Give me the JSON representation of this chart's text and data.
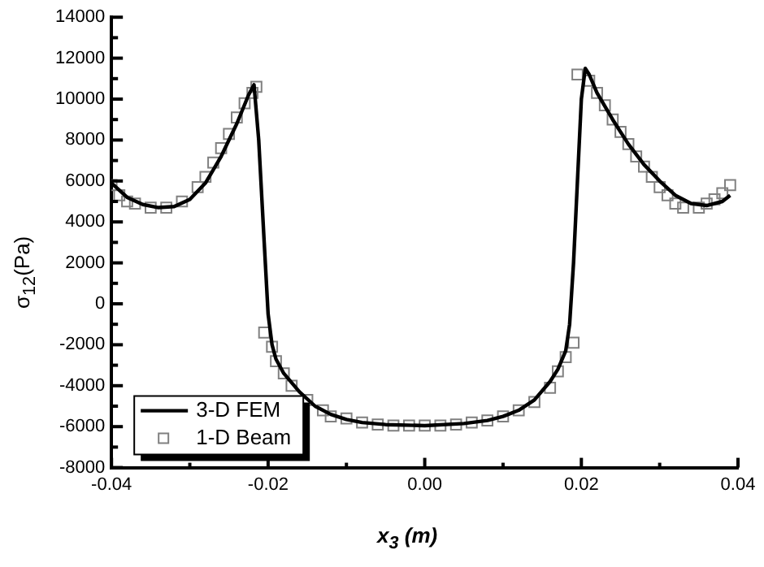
{
  "chart_data": {
    "type": "line",
    "xlabel": "x$_{3}$ (m)",
    "ylabel": "σ$_{12}$(Pa)",
    "xlim": [
      -0.04,
      0.04
    ],
    "xticks": [
      -0.04,
      -0.02,
      {
        "value": 0,
        "label": "0.00"
      },
      0.02,
      0.04
    ],
    "ylim": [
      -8000,
      14000
    ],
    "yticks": [
      -8000,
      -6000,
      -4000,
      -2000,
      0,
      2000,
      4000,
      6000,
      8000,
      10000,
      12000,
      14000
    ],
    "grid": false,
    "legend": "bottom left",
    "series": [
      {
        "name": "3-D FEM",
        "color": "#000000",
        "marker": "none",
        "x": [
          -0.04,
          -0.038,
          -0.036,
          -0.034,
          -0.032,
          -0.03,
          -0.028,
          -0.026,
          -0.024,
          -0.0225,
          -0.0218,
          -0.0212,
          -0.0205,
          -0.02,
          -0.0195,
          -0.019,
          -0.018,
          -0.016,
          -0.014,
          -0.012,
          -0.01,
          -0.008,
          -0.005,
          0,
          0.005,
          0.008,
          0.01,
          0.012,
          0.014,
          0.016,
          0.017,
          0.018,
          0.0185,
          0.019,
          0.0195,
          0.02,
          0.0205,
          0.021,
          0.022,
          0.024,
          0.026,
          0.028,
          0.03,
          0.032,
          0.034,
          0.036,
          0.038,
          0.039
        ],
        "values": [
          5900,
          5200,
          4850,
          4700,
          4750,
          5100,
          5900,
          7200,
          8800,
          10200,
          10700,
          8000,
          3000,
          -500,
          -2000,
          -2700,
          -3400,
          -4300,
          -5000,
          -5400,
          -5650,
          -5800,
          -5900,
          -5950,
          -5850,
          -5700,
          -5500,
          -5200,
          -4700,
          -3800,
          -3200,
          -2300,
          -1000,
          2000,
          6000,
          10000,
          11500,
          11200,
          10300,
          9000,
          7800,
          6800,
          6000,
          5300,
          4900,
          4800,
          5000,
          5300
        ]
      },
      {
        "name": "1-D Beam",
        "type": "scatter",
        "color": "#808080",
        "marker": "square",
        "x": [
          -0.04,
          -0.039,
          -0.038,
          -0.037,
          -0.035,
          -0.033,
          -0.031,
          -0.029,
          -0.028,
          -0.027,
          -0.026,
          -0.025,
          -0.024,
          -0.023,
          -0.022,
          -0.0215,
          -0.0205,
          -0.0195,
          -0.019,
          -0.018,
          -0.017,
          -0.015,
          -0.013,
          -0.012,
          -0.01,
          -0.008,
          -0.006,
          -0.004,
          -0.002,
          0,
          0.002,
          0.004,
          0.006,
          0.008,
          0.01,
          0.012,
          0.014,
          0.016,
          0.017,
          0.018,
          0.019,
          0.0195,
          0.021,
          0.022,
          0.023,
          0.024,
          0.025,
          0.026,
          0.027,
          0.028,
          0.029,
          0.03,
          0.031,
          0.032,
          0.033,
          0.035,
          0.036,
          0.037,
          0.038,
          0.039
        ],
        "values": [
          5800,
          5300,
          5000,
          4900,
          4700,
          4700,
          5000,
          5700,
          6200,
          6900,
          7600,
          8300,
          9100,
          9800,
          10300,
          10600,
          -1400,
          -2100,
          -2800,
          -3400,
          -4000,
          -4700,
          -5200,
          -5500,
          -5600,
          -5800,
          -5900,
          -5950,
          -5950,
          -5950,
          -5950,
          -5900,
          -5800,
          -5700,
          -5500,
          -5200,
          -4800,
          -4100,
          -3300,
          -2600,
          -1900,
          11200,
          10900,
          10300,
          9700,
          9000,
          8400,
          7800,
          7200,
          6700,
          6200,
          5700,
          5300,
          4900,
          4700,
          4700,
          4900,
          5100,
          5400,
          5800
        ]
      }
    ]
  }
}
